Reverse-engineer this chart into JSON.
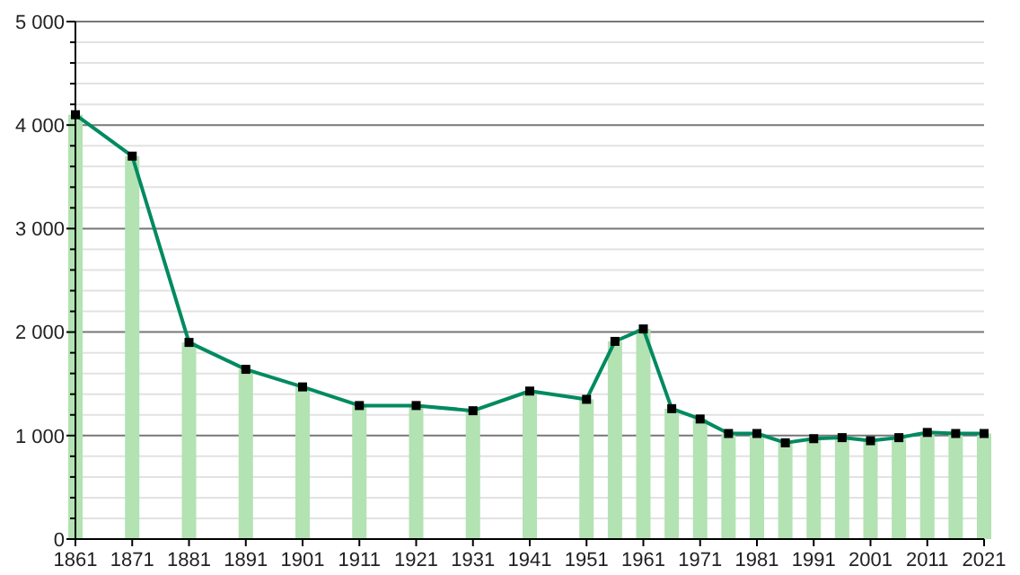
{
  "chart_data": {
    "type": "bar",
    "x": [
      1861,
      1871,
      1881,
      1891,
      1901,
      1911,
      1921,
      1931,
      1941,
      1951,
      1956,
      1961,
      1966,
      1971,
      1976,
      1981,
      1986,
      1991,
      1996,
      2001,
      2006,
      2011,
      2016,
      2021
    ],
    "series": [
      {
        "color": "#b3e2b3",
        "values": [
          4100,
          3700,
          1900,
          1640,
          1470,
          1290,
          1290,
          1240,
          1430,
          1350,
          1910,
          2030,
          1260,
          1160,
          1020,
          1020,
          930,
          970,
          980,
          950,
          980,
          1030,
          1020,
          1020
        ]
      },
      {
        "type": "line",
        "color": "#008a60",
        "marker": "square",
        "values": [
          4100,
          3700,
          1900,
          1640,
          1470,
          1290,
          1290,
          1240,
          1430,
          1350,
          1910,
          2030,
          1260,
          1160,
          1020,
          1020,
          930,
          970,
          980,
          950,
          980,
          1030,
          1020,
          1020
        ]
      }
    ],
    "xlim": [
      1861,
      2021
    ],
    "xticks": [
      1861,
      1871,
      1881,
      1891,
      1901,
      1911,
      1921,
      1931,
      1941,
      1951,
      1961,
      1971,
      1981,
      1991,
      2001,
      2011,
      2021
    ],
    "ylim": [
      0,
      5000
    ],
    "yticks": [
      {
        "value": 0,
        "label": "0"
      },
      {
        "value": 200,
        "label": null
      },
      {
        "value": 400,
        "label": null
      },
      {
        "value": 600,
        "label": null
      },
      {
        "value": 800,
        "label": null
      },
      {
        "value": 1000,
        "label": "1 000"
      },
      {
        "value": 1200,
        "label": null
      },
      {
        "value": 1400,
        "label": null
      },
      {
        "value": 1600,
        "label": null
      },
      {
        "value": 1800,
        "label": null
      },
      {
        "value": 2000,
        "label": "2 000"
      },
      {
        "value": 2200,
        "label": null
      },
      {
        "value": 2400,
        "label": null
      },
      {
        "value": 2600,
        "label": null
      },
      {
        "value": 2800,
        "label": null
      },
      {
        "value": 3000,
        "label": "3 000"
      },
      {
        "value": 3200,
        "label": null
      },
      {
        "value": 3400,
        "label": null
      },
      {
        "value": 3600,
        "label": null
      },
      {
        "value": 3800,
        "label": null
      },
      {
        "value": 4000,
        "label": "4 000"
      },
      {
        "value": 4200,
        "label": null
      },
      {
        "value": 4400,
        "label": null
      },
      {
        "value": 4600,
        "label": null
      },
      {
        "value": 4800,
        "label": null
      },
      {
        "value": 5000,
        "label": "5 000"
      }
    ],
    "grid": true
  }
}
